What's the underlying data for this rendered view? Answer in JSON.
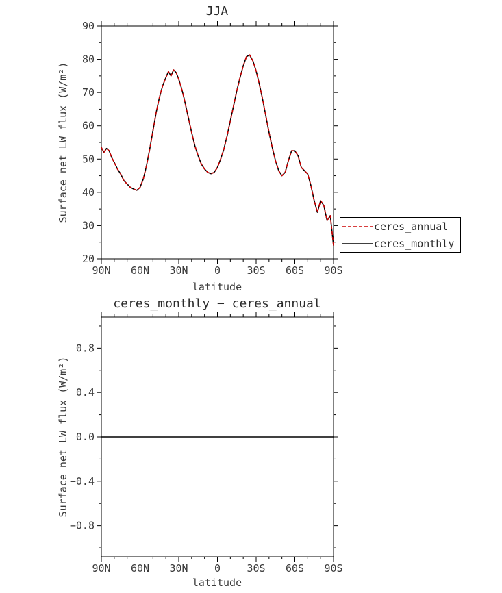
{
  "page": {
    "background": "#ffffff"
  },
  "chart_data": [
    {
      "type": "line",
      "title": "JJA",
      "xlabel": "latitude",
      "ylabel": "Surface net LW flux (W/m²)",
      "xlim": [
        90,
        -90
      ],
      "ylim": [
        20,
        90
      ],
      "grid": false,
      "legend_position": "right-outside",
      "xticks": {
        "values": [
          90,
          60,
          30,
          0,
          -30,
          -60,
          -90
        ],
        "labels": [
          "90N",
          "60N",
          "30N",
          "0",
          "30S",
          "60S",
          "90S"
        ],
        "minor_step": 10
      },
      "yticks": {
        "values": [
          20,
          30,
          40,
          50,
          60,
          70,
          80,
          90
        ],
        "labels": [
          "20",
          "30",
          "40",
          "50",
          "60",
          "70",
          "80",
          "90"
        ],
        "minor_step": 5
      },
      "x": [
        90,
        88,
        86,
        84,
        82,
        80,
        77.5,
        75,
        72.5,
        70,
        67.5,
        65,
        62.5,
        60,
        57.5,
        55,
        52.5,
        50,
        47.5,
        45,
        42.5,
        40,
        38,
        36,
        34,
        32,
        30,
        28,
        26,
        24,
        22,
        20,
        17.5,
        15,
        12.5,
        10,
        7.5,
        5,
        2.5,
        0,
        -2.5,
        -5,
        -7.5,
        -10,
        -12.5,
        -15,
        -17.5,
        -20,
        -22.5,
        -25,
        -27.5,
        -30,
        -32.5,
        -35,
        -37.5,
        -40,
        -42.5,
        -45,
        -47.5,
        -50,
        -52.5,
        -55,
        -57.5,
        -60,
        -62.5,
        -65,
        -67.5,
        -70,
        -72.5,
        -75,
        -77.5,
        -80,
        -82.5,
        -85,
        -87.5,
        -90
      ],
      "values": [
        53.5,
        52.0,
        53.2,
        52.5,
        50.5,
        49.0,
        47.0,
        45.5,
        43.5,
        42.5,
        41.5,
        41.0,
        40.6,
        41.5,
        44.0,
        48.0,
        53.0,
        58.5,
        64.0,
        68.5,
        72.0,
        74.5,
        76.3,
        75.0,
        76.8,
        76.0,
        74.0,
        71.5,
        68.5,
        65.0,
        61.5,
        58.0,
        54.0,
        51.0,
        48.5,
        47.0,
        46.0,
        45.6,
        46.0,
        47.5,
        50.0,
        53.0,
        57.0,
        61.5,
        66.0,
        70.5,
        74.5,
        78.0,
        80.8,
        81.3,
        79.5,
        76.5,
        72.5,
        68.0,
        63.0,
        58.0,
        53.5,
        49.5,
        46.5,
        45.0,
        46.0,
        49.5,
        52.5,
        52.5,
        51.0,
        47.5,
        46.5,
        45.5,
        42.0,
        37.5,
        34.0,
        37.5,
        36.0,
        31.5,
        33.0,
        24.0
      ],
      "series": [
        {
          "name": "ceres_annual",
          "color": "#cc0000",
          "dash": "5,3"
        },
        {
          "name": "ceres_monthly",
          "color": "#000000",
          "dash": ""
        }
      ]
    },
    {
      "type": "line",
      "title": "ceres_monthly − ceres_annual",
      "xlabel": "latitude",
      "ylabel": "Surface net LW flux (W/m²)",
      "xlim": [
        90,
        -90
      ],
      "ylim": [
        -1.08,
        1.08
      ],
      "grid": false,
      "xticks": {
        "values": [
          90,
          60,
          30,
          0,
          -30,
          -60,
          -90
        ],
        "labels": [
          "90N",
          "60N",
          "30N",
          "0",
          "30S",
          "60S",
          "90S"
        ],
        "minor_step": 10
      },
      "yticks": {
        "values": [
          -0.8,
          -0.4,
          0,
          0.4,
          0.8
        ],
        "labels": [
          "−0.8",
          "−0.4",
          "0.0",
          "0.4",
          "0.8"
        ],
        "minor_step": 0.2
      },
      "x": [
        90,
        -90
      ],
      "values": [
        0,
        0
      ],
      "series": [
        {
          "name": "ceres_monthly_minus_ceres_annual",
          "color": "#000000",
          "dash": ""
        }
      ]
    }
  ]
}
